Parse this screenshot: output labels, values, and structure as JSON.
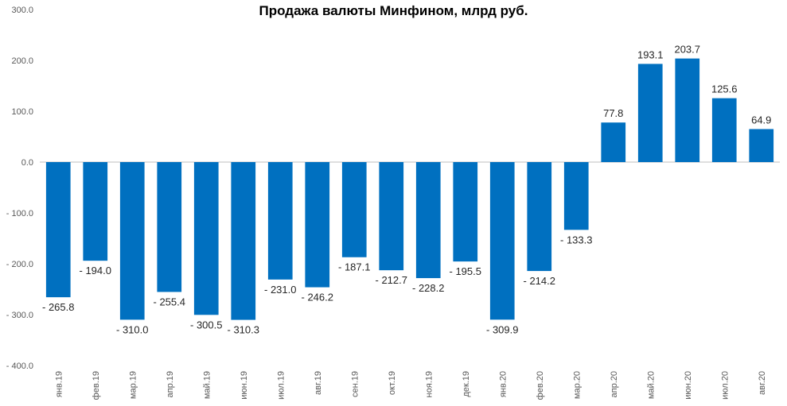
{
  "chart_data": {
    "type": "bar",
    "title": "Продажа валюты Минфином, млрд руб.",
    "xlabel": "",
    "ylabel": "",
    "ylim": [
      -400,
      300
    ],
    "y_ticks": [
      300,
      200,
      100,
      0,
      -100,
      -200,
      -300,
      -400
    ],
    "y_tick_labels": [
      "300.0",
      "200.0",
      "100.0",
      "0.0",
      "- 100.0",
      "- 200.0",
      "- 300.0",
      "- 400.0"
    ],
    "categories": [
      "янв.19",
      "фев.19",
      "мар.19",
      "апр.19",
      "май.19",
      "июн.19",
      "июл.19",
      "авг.19",
      "сен.19",
      "окт.19",
      "ноя.19",
      "дек.19",
      "янв.20",
      "фев.20",
      "мар.20",
      "апр.20",
      "май.20",
      "июн.20",
      "июл.20",
      "авг.20"
    ],
    "values": [
      -265.8,
      -194.0,
      -310.0,
      -255.4,
      -300.5,
      -310.3,
      -231.0,
      -246.2,
      -187.1,
      -212.7,
      -228.2,
      -195.5,
      -309.9,
      -214.2,
      -133.3,
      77.8,
      193.1,
      203.7,
      125.6,
      64.9
    ],
    "value_labels": [
      "- 265.8",
      "- 194.0",
      "- 310.0",
      "- 255.4",
      "- 300.5",
      "- 310.3",
      "- 231.0",
      "- 246.2",
      "- 187.1",
      "- 212.7",
      "- 228.2",
      "- 195.5",
      "- 309.9",
      "- 214.2",
      "- 133.3",
      "77.8",
      "193.1",
      "203.7",
      "125.6",
      "64.9"
    ],
    "bar_color": "#0070C0",
    "grid": false,
    "legend": "none"
  }
}
